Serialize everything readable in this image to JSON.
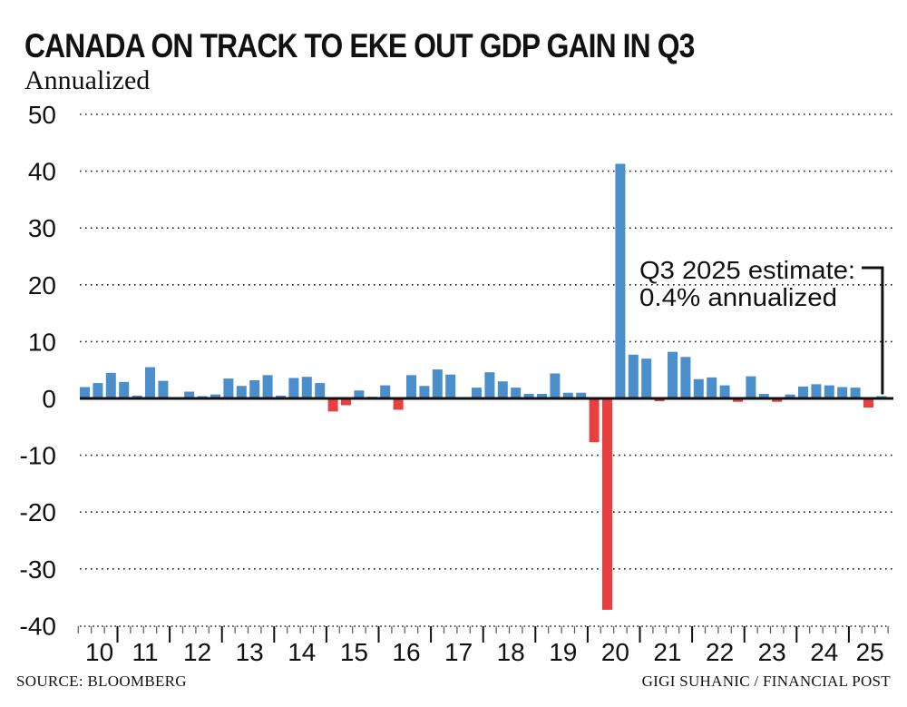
{
  "header": {
    "title": "CANADA ON TRACK TO EKE OUT GDP GAIN IN Q3",
    "subtitle": "Annualized"
  },
  "footer": {
    "source": "SOURCE: BLOOMBERG",
    "credit": "GIGI SUHANIC / FINANCIAL POST"
  },
  "colors": {
    "positive": "#4a8fcc",
    "negative": "#e84040",
    "axis": "#111111"
  },
  "chart_data": {
    "type": "bar",
    "title": "CANADA ON TRACK TO EKE OUT GDP GAIN IN Q3",
    "subtitle": "Annualized",
    "xlabel": "",
    "ylabel": "",
    "ylim": [
      -40,
      50
    ],
    "yticks": [
      50,
      40,
      30,
      20,
      10,
      0,
      -10,
      -20,
      -30,
      -40
    ],
    "grid": true,
    "start_quarter": "2010 Q2",
    "end_quarter": "2025 Q3",
    "year_labels": [
      "10",
      "11",
      "12",
      "13",
      "14",
      "15",
      "16",
      "17",
      "18",
      "19",
      "20",
      "21",
      "22",
      "23",
      "24",
      "25"
    ],
    "categories": [
      "2010 Q2",
      "2010 Q3",
      "2010 Q4",
      "2011 Q1",
      "2011 Q2",
      "2011 Q3",
      "2011 Q4",
      "2012 Q1",
      "2012 Q2",
      "2012 Q3",
      "2012 Q4",
      "2013 Q1",
      "2013 Q2",
      "2013 Q3",
      "2013 Q4",
      "2014 Q1",
      "2014 Q2",
      "2014 Q3",
      "2014 Q4",
      "2015 Q1",
      "2015 Q2",
      "2015 Q3",
      "2015 Q4",
      "2016 Q1",
      "2016 Q2",
      "2016 Q3",
      "2016 Q4",
      "2017 Q1",
      "2017 Q2",
      "2017 Q3",
      "2017 Q4",
      "2018 Q1",
      "2018 Q2",
      "2018 Q3",
      "2018 Q4",
      "2019 Q1",
      "2019 Q2",
      "2019 Q3",
      "2019 Q4",
      "2020 Q1",
      "2020 Q2",
      "2020 Q3",
      "2020 Q4",
      "2021 Q1",
      "2021 Q2",
      "2021 Q3",
      "2021 Q4",
      "2022 Q1",
      "2022 Q2",
      "2022 Q3",
      "2022 Q4",
      "2023 Q1",
      "2023 Q2",
      "2023 Q3",
      "2023 Q4",
      "2024 Q1",
      "2024 Q2",
      "2024 Q3",
      "2024 Q4",
      "2025 Q1",
      "2025 Q2",
      "2025 Q3"
    ],
    "values": [
      2.0,
      2.7,
      4.5,
      2.9,
      0.5,
      5.5,
      3.1,
      0.2,
      1.2,
      0.4,
      0.7,
      3.5,
      2.2,
      3.2,
      4.1,
      0.5,
      3.6,
      3.8,
      2.7,
      -2.3,
      -1.2,
      1.4,
      0.3,
      2.3,
      -2.0,
      4.1,
      2.2,
      5.1,
      4.2,
      0.0,
      1.9,
      4.6,
      3.0,
      1.9,
      0.8,
      0.8,
      4.4,
      1.0,
      1.0,
      -7.7,
      -37.2,
      41.3,
      7.7,
      7.0,
      -0.5,
      8.2,
      7.3,
      3.4,
      3.7,
      2.3,
      -0.6,
      3.9,
      0.8,
      -0.6,
      0.7,
      2.1,
      2.5,
      2.3,
      2.0,
      1.9,
      -1.6,
      0.4
    ],
    "annotation": {
      "target": "2025 Q3",
      "line1": "Q3 2025 estimate:",
      "line2": "0.4% annualized"
    }
  }
}
